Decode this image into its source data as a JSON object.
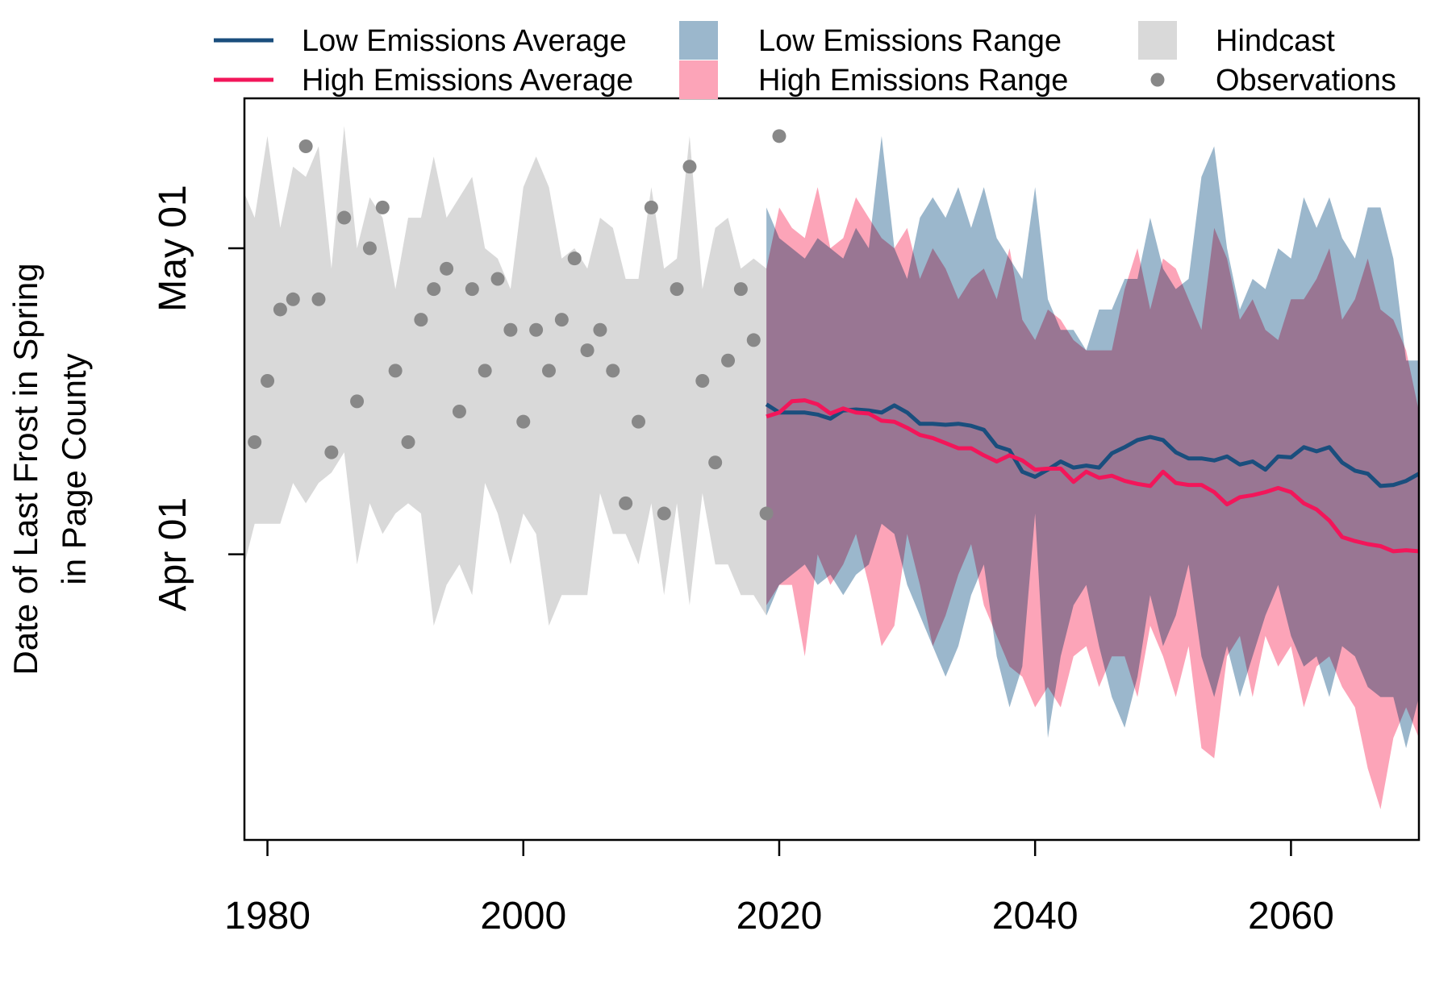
{
  "chart_data": {
    "type": "line",
    "ylabel": [
      "Date of Last Frost in Spring",
      "in Page County"
    ],
    "xlim": [
      1978.2,
      2070
    ],
    "xticks": [
      1980,
      2000,
      2020,
      2040,
      2060
    ],
    "ylim": [
      63,
      135.7
    ],
    "yticks": [
      {
        "value": 91,
        "label": "Apr 01"
      },
      {
        "value": 121,
        "label": "May 01"
      }
    ],
    "legend": "top",
    "series": [
      {
        "name": "Low Emissions Average",
        "type": "line",
        "color": "#1a4e7d",
        "x": [
          2019,
          2020,
          2021,
          2022,
          2023,
          2024,
          2025,
          2026,
          2027,
          2028,
          2029,
          2030,
          2031,
          2032,
          2033,
          2034,
          2035,
          2036,
          2037,
          2038,
          2039,
          2040,
          2041,
          2042,
          2043,
          2044,
          2045,
          2046,
          2047,
          2048,
          2049,
          2050,
          2051,
          2052,
          2053,
          2054,
          2055,
          2056,
          2057,
          2058,
          2059,
          2060,
          2061,
          2062,
          2063,
          2064,
          2065,
          2066,
          2067,
          2068,
          2069,
          2070
        ],
        "values": [
          105.7,
          104.9,
          104.9,
          104.9,
          104.7,
          104.3,
          105.1,
          105.2,
          105.1,
          104.9,
          105.6,
          104.9,
          103.8,
          103.8,
          103.7,
          103.8,
          103.6,
          103.2,
          101.6,
          101.2,
          99.1,
          98.6,
          99.3,
          100.1,
          99.5,
          99.7,
          99.5,
          100.9,
          101.5,
          102.2,
          102.5,
          102.2,
          101.0,
          100.4,
          100.4,
          100.2,
          100.6,
          99.8,
          100.1,
          99.3,
          100.6,
          100.5,
          101.5,
          101.1,
          101.5,
          100.0,
          99.2,
          98.9,
          97.7,
          97.8,
          98.2,
          98.9
        ]
      },
      {
        "name": "High Emissions Average",
        "type": "line",
        "color": "#f2165a",
        "x": [
          2019,
          2020,
          2021,
          2022,
          2023,
          2024,
          2025,
          2026,
          2027,
          2028,
          2029,
          2030,
          2031,
          2032,
          2033,
          2034,
          2035,
          2036,
          2037,
          2038,
          2039,
          2040,
          2041,
          2042,
          2043,
          2044,
          2045,
          2046,
          2047,
          2048,
          2049,
          2050,
          2051,
          2052,
          2053,
          2054,
          2055,
          2056,
          2057,
          2058,
          2059,
          2060,
          2061,
          2062,
          2063,
          2064,
          2065,
          2066,
          2067,
          2068,
          2069,
          2070
        ],
        "values": [
          104.5,
          104.9,
          106.0,
          106.1,
          105.7,
          104.8,
          105.3,
          104.9,
          104.8,
          104.1,
          104.0,
          103.4,
          102.7,
          102.4,
          101.9,
          101.4,
          101.4,
          100.7,
          100.1,
          100.7,
          100.2,
          99.3,
          99.4,
          99.4,
          98.1,
          99.1,
          98.5,
          98.7,
          98.2,
          97.9,
          97.7,
          99.1,
          98.0,
          97.8,
          97.8,
          97.1,
          95.9,
          96.6,
          96.8,
          97.1,
          97.5,
          97.1,
          96.0,
          95.4,
          94.3,
          92.7,
          92.3,
          92.0,
          91.8,
          91.3,
          91.4,
          91.3
        ]
      },
      {
        "name": "Low Emissions Range",
        "type": "band",
        "color": "#9bb7cc",
        "x": [
          2019,
          2020,
          2021,
          2022,
          2023,
          2024,
          2025,
          2026,
          2027,
          2028,
          2029,
          2030,
          2031,
          2032,
          2033,
          2034,
          2035,
          2036,
          2037,
          2038,
          2039,
          2040,
          2041,
          2042,
          2043,
          2044,
          2045,
          2046,
          2047,
          2048,
          2049,
          2050,
          2051,
          2052,
          2053,
          2054,
          2055,
          2056,
          2057,
          2058,
          2059,
          2060,
          2061,
          2062,
          2063,
          2064,
          2065,
          2066,
          2067,
          2068,
          2069,
          2070
        ],
        "upper": [
          125,
          122,
          121,
          120,
          122,
          121,
          120,
          123,
          121,
          132,
          121,
          118,
          124,
          126,
          124,
          127,
          123,
          127,
          122,
          120,
          118,
          127,
          116,
          113,
          113,
          111,
          115,
          115,
          118,
          118,
          124,
          119,
          117,
          118,
          128,
          131,
          121,
          115,
          118,
          117,
          121,
          120,
          126,
          123,
          126,
          122,
          120,
          125,
          125,
          120,
          110,
          110
        ],
        "lower": [
          85,
          88,
          89,
          90,
          88,
          89,
          87,
          89,
          90,
          94,
          93,
          88,
          85,
          82,
          79,
          82,
          87,
          90,
          81,
          76,
          80,
          95,
          73,
          81,
          86,
          88,
          82,
          77,
          74,
          79,
          87,
          82,
          85,
          90,
          81,
          77,
          82,
          77,
          81,
          85,
          88,
          83,
          80,
          81,
          77,
          82,
          81,
          78,
          77,
          77,
          72,
          77
        ]
      },
      {
        "name": "High Emissions Range",
        "type": "band",
        "color": "#fca4b8",
        "x": [
          2019,
          2020,
          2021,
          2022,
          2023,
          2024,
          2025,
          2026,
          2027,
          2028,
          2029,
          2030,
          2031,
          2032,
          2033,
          2034,
          2035,
          2036,
          2037,
          2038,
          2039,
          2040,
          2041,
          2042,
          2043,
          2044,
          2045,
          2046,
          2047,
          2048,
          2049,
          2050,
          2051,
          2052,
          2053,
          2054,
          2055,
          2056,
          2057,
          2058,
          2059,
          2060,
          2061,
          2062,
          2063,
          2064,
          2065,
          2066,
          2067,
          2068,
          2069,
          2070
        ],
        "upper": [
          119,
          125,
          123,
          122,
          127,
          121,
          122,
          126,
          124,
          122,
          121,
          123,
          118,
          121,
          119,
          116,
          118,
          119,
          116,
          121,
          114,
          112,
          115,
          114,
          112,
          111,
          111,
          111,
          117,
          121,
          115,
          120,
          119,
          116,
          113,
          123,
          120,
          114,
          116,
          113,
          112,
          116,
          116,
          118,
          121,
          114,
          116,
          120,
          115,
          114,
          111,
          105
        ],
        "lower": [
          86,
          88,
          88,
          81,
          91,
          88,
          90,
          93,
          88,
          82,
          84,
          93,
          88,
          82,
          85,
          89,
          92,
          86,
          83,
          80,
          79,
          76,
          78,
          76,
          81,
          82,
          78,
          81,
          81,
          77,
          84,
          81,
          77,
          82,
          72,
          71,
          81,
          83,
          77,
          83,
          80,
          82,
          76,
          80,
          81,
          78,
          76,
          70,
          66,
          73,
          76,
          73
        ]
      },
      {
        "name": "Hindcast",
        "type": "band",
        "color": "#d9d9d9",
        "x": [
          1978,
          1979,
          1980,
          1981,
          1982,
          1983,
          1984,
          1985,
          1986,
          1987,
          1988,
          1989,
          1990,
          1991,
          1992,
          1993,
          1994,
          1995,
          1996,
          1997,
          1998,
          1999,
          2000,
          2001,
          2002,
          2003,
          2004,
          2005,
          2006,
          2007,
          2008,
          2009,
          2010,
          2011,
          2012,
          2013,
          2014,
          2015,
          2016,
          2017,
          2018,
          2019
        ],
        "upper": [
          127,
          124,
          132,
          123,
          129,
          128,
          131,
          119,
          133,
          121,
          126,
          124,
          117,
          124,
          124,
          130,
          124,
          126,
          128,
          121,
          120,
          117,
          127,
          130,
          127,
          120,
          121,
          119,
          124,
          123,
          118,
          118,
          127,
          119,
          120,
          132,
          117,
          123,
          124,
          119,
          120,
          119
        ],
        "lower": [
          89,
          94,
          94,
          94,
          98,
          96,
          98,
          99,
          101,
          90,
          96,
          93,
          95,
          96,
          95,
          84,
          88,
          90,
          87,
          98,
          95,
          90,
          95,
          93,
          84,
          87,
          87,
          87,
          97,
          93,
          93,
          90,
          96,
          87,
          96,
          86,
          97,
          90,
          90,
          87,
          87,
          85
        ]
      },
      {
        "name": "Observations",
        "type": "scatter",
        "color": "#888888",
        "x": [
          1979,
          1980,
          1981,
          1982,
          1983,
          1984,
          1985,
          1986,
          1987,
          1988,
          1989,
          1990,
          1991,
          1992,
          1993,
          1994,
          1995,
          1996,
          1997,
          1998,
          1999,
          2000,
          2001,
          2002,
          2003,
          2004,
          2005,
          2006,
          2007,
          2008,
          2009,
          2010,
          2011,
          2012,
          2013,
          2014,
          2015,
          2016,
          2017,
          2018,
          2019,
          2020
        ],
        "values": [
          102,
          108,
          115,
          116,
          131,
          116,
          101,
          124,
          106,
          121,
          125,
          109,
          102,
          114,
          117,
          119,
          105,
          117,
          109,
          118,
          113,
          104,
          113,
          109,
          114,
          120,
          111,
          113,
          109,
          96,
          104,
          125,
          95,
          117,
          129,
          108,
          100,
          110,
          117,
          112,
          95,
          132
        ]
      }
    ]
  }
}
